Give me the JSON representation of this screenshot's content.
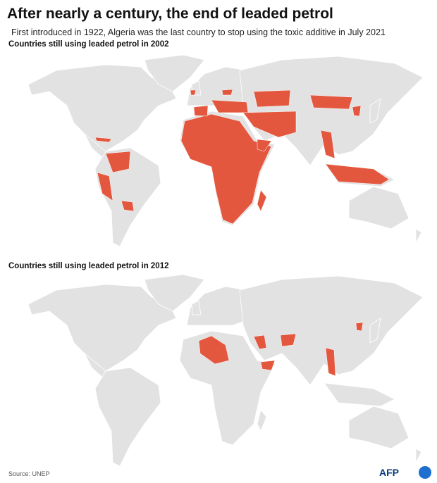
{
  "header": {
    "title": "After nearly a century, the end of leaded petrol",
    "subtitle": "First introduced in 1922, Algeria was the last country to stop using the toxic additive in July 2021"
  },
  "maps": [
    {
      "label": "Countries still using leaded petrol in 2002"
    },
    {
      "label": "Countries still using leaded petrol in 2012"
    }
  ],
  "footer": {
    "source": "Source:  UNEP",
    "logo": "AFP"
  }
}
